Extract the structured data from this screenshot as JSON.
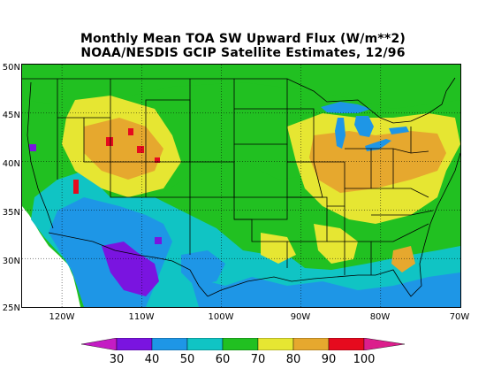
{
  "title": {
    "line1": "Monthly Mean TOA SW Upward Flux (W/m**2)",
    "line2": "NOAA/NESDIS GCIP Satellite Estimates, 12/96"
  },
  "latitude_labels": [
    "50N",
    "45N",
    "40N",
    "35N",
    "30N",
    "25N"
  ],
  "latitudes": [
    50,
    45,
    40,
    35,
    30,
    25
  ],
  "longitude_labels": [
    "120W",
    "110W",
    "100W",
    "90W",
    "80W",
    "70W"
  ],
  "longitudes": [
    -120,
    -110,
    -100,
    -90,
    -80,
    -70
  ],
  "extent": {
    "lon_min": -125,
    "lon_max": -70,
    "lat_min": 25,
    "lat_max": 50
  },
  "colorbar": {
    "labels": [
      "30",
      "40",
      "50",
      "60",
      "70",
      "80",
      "90",
      "100"
    ],
    "colors": [
      "#c41cc4",
      "#7a14e0",
      "#1e96e6",
      "#10c4c4",
      "#21c021",
      "#e6e632",
      "#e6a82e",
      "#e60a1e",
      "#dc1e8c"
    ]
  },
  "map_colors": {
    "ocean": "#c41cc4",
    "c30_40": "#7a14e0",
    "c40_50": "#1e96e6",
    "c50_60": "#10c4c4",
    "c60_70": "#21c021",
    "c70_80": "#e6e632",
    "c80_90": "#e6a82e",
    "c90_100": "#e60a1e",
    "lakes": "#1e96e6"
  }
}
